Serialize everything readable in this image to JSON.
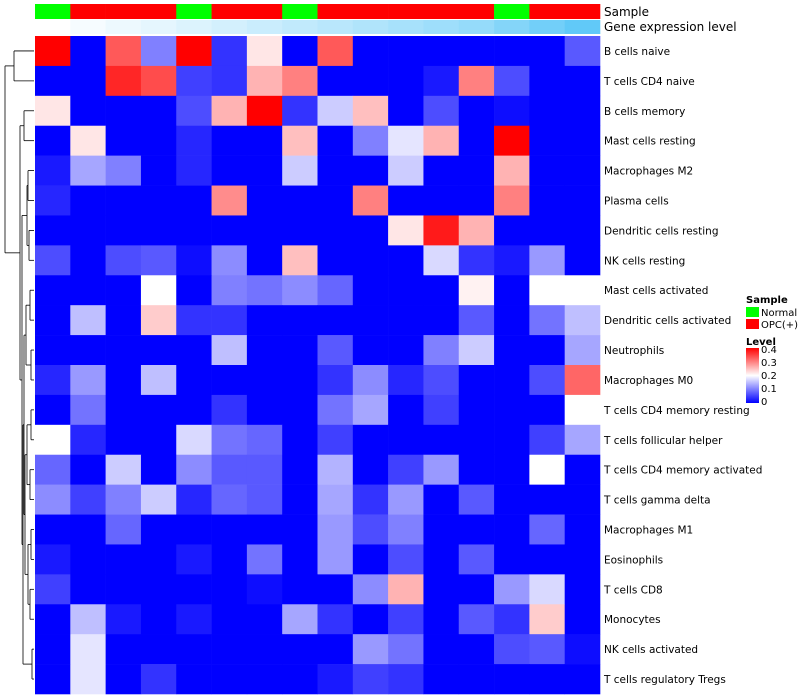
{
  "chart_data": {
    "type": "heatmap",
    "title": "",
    "annotation_tracks": [
      "Sample",
      "Gene expression level"
    ],
    "columns": 16,
    "sample_groups": [
      "Normal",
      "OPC(+)",
      "OPC(+)",
      "OPC(+)",
      "Normal",
      "OPC(+)",
      "OPC(+)",
      "Normal",
      "OPC(+)",
      "OPC(+)",
      "OPC(+)",
      "OPC(+)",
      "OPC(+)",
      "Normal",
      "OPC(+)",
      "OPC(+)"
    ],
    "expression_level": [
      0.0,
      0.05,
      0.1,
      0.15,
      0.2,
      0.25,
      0.3,
      0.35,
      0.4,
      0.45,
      0.5,
      0.55,
      0.6,
      0.7,
      0.8,
      0.9
    ],
    "rows": [
      "B cells naive",
      "T cells CD4 naive",
      "B cells memory",
      "Mast cells resting",
      "Macrophages M2",
      "Plasma cells",
      "Dendritic cells resting",
      "NK cells resting",
      "Mast cells activated",
      "Dendritic cells activated",
      "Neutrophils",
      "Macrophages M0",
      "T cells CD4 memory resting",
      "T cells follicular helper",
      "T cells CD4 memory activated",
      "T cells gamma delta",
      "Macrophages M1",
      "Eosinophils",
      "T cells CD8",
      "Monocytes",
      "NK cells activated",
      "T cells regulatory  Tregs"
    ],
    "values": [
      [
        0.4,
        0.0,
        0.33,
        0.1,
        0.4,
        0.04,
        0.22,
        0.0,
        0.33,
        0.0,
        0.0,
        0.0,
        0.0,
        0.0,
        0.0,
        0.07
      ],
      [
        0.0,
        0.0,
        0.37,
        0.34,
        0.05,
        0.04,
        0.26,
        0.3,
        0.0,
        0.0,
        0.0,
        0.02,
        0.3,
        0.06,
        0.0,
        0.0
      ],
      [
        0.22,
        0.0,
        0.0,
        0.0,
        0.06,
        0.26,
        0.4,
        0.04,
        0.16,
        0.25,
        0.0,
        0.06,
        0.0,
        0.01,
        0.0,
        0.0
      ],
      [
        0.0,
        0.22,
        0.0,
        0.0,
        0.03,
        0.0,
        0.0,
        0.25,
        0.0,
        0.1,
        0.18,
        0.26,
        0.0,
        0.4,
        0.0,
        0.0
      ],
      [
        0.02,
        0.13,
        0.1,
        0.0,
        0.03,
        0.0,
        0.0,
        0.16,
        0.0,
        0.0,
        0.16,
        0.0,
        0.0,
        0.26,
        0.0,
        0.0
      ],
      [
        0.03,
        0.0,
        0.0,
        0.0,
        0.0,
        0.29,
        0.0,
        0.0,
        0.0,
        0.3,
        0.0,
        0.0,
        0.0,
        0.3,
        0.0,
        0.0
      ],
      [
        0.0,
        0.0,
        0.0,
        0.0,
        0.0,
        0.0,
        0.0,
        0.0,
        0.0,
        0.0,
        0.22,
        0.38,
        0.26,
        0.0,
        0.0,
        0.0
      ],
      [
        0.06,
        0.0,
        0.06,
        0.07,
        0.01,
        0.11,
        0.0,
        0.25,
        0.0,
        0.0,
        0.0,
        0.17,
        0.04,
        0.02,
        0.12,
        0.0
      ],
      [
        0.0,
        0.0,
        0.0,
        0.2,
        0.0,
        0.1,
        0.09,
        0.11,
        0.08,
        0.0,
        0.0,
        0.0,
        0.21,
        0.0,
        0.2,
        0.2
      ],
      [
        0.0,
        0.15,
        0.0,
        0.24,
        0.04,
        0.04,
        0.0,
        0.0,
        0.0,
        0.0,
        0.0,
        0.0,
        0.07,
        0.0,
        0.09,
        0.15
      ],
      [
        0.0,
        0.0,
        0.0,
        0.0,
        0.0,
        0.15,
        0.0,
        0.0,
        0.07,
        0.0,
        0.0,
        0.1,
        0.16,
        0.0,
        0.0,
        0.13
      ],
      [
        0.03,
        0.12,
        0.0,
        0.15,
        0.0,
        0.0,
        0.0,
        0.0,
        0.04,
        0.11,
        0.03,
        0.06,
        0.0,
        0.0,
        0.06,
        0.32
      ],
      [
        0.0,
        0.09,
        0.0,
        0.0,
        0.0,
        0.04,
        0.0,
        0.0,
        0.09,
        0.13,
        0.0,
        0.05,
        0.0,
        0.0,
        0.0,
        0.2
      ],
      [
        0.2,
        0.03,
        0.0,
        0.0,
        0.17,
        0.09,
        0.08,
        0.0,
        0.05,
        0.0,
        0.0,
        0.0,
        0.0,
        0.0,
        0.05,
        0.13
      ],
      [
        0.08,
        0.0,
        0.16,
        0.0,
        0.11,
        0.07,
        0.07,
        0.0,
        0.14,
        0.0,
        0.05,
        0.12,
        0.0,
        0.0,
        0.2,
        0.0
      ],
      [
        0.11,
        0.05,
        0.1,
        0.16,
        0.03,
        0.08,
        0.07,
        0.0,
        0.13,
        0.04,
        0.12,
        0.0,
        0.07,
        0.0,
        0.0,
        0.0
      ],
      [
        0.0,
        0.0,
        0.08,
        0.0,
        0.0,
        0.0,
        0.0,
        0.0,
        0.12,
        0.06,
        0.1,
        0.0,
        0.0,
        0.0,
        0.08,
        0.0
      ],
      [
        0.02,
        0.0,
        0.0,
        0.0,
        0.02,
        0.0,
        0.09,
        0.0,
        0.12,
        0.0,
        0.06,
        0.0,
        0.07,
        0.0,
        0.0,
        0.0
      ],
      [
        0.05,
        0.0,
        0.0,
        0.0,
        0.0,
        0.0,
        0.01,
        0.0,
        0.0,
        0.11,
        0.26,
        0.0,
        0.0,
        0.12,
        0.17,
        0.0
      ],
      [
        0.0,
        0.15,
        0.02,
        0.0,
        0.02,
        0.0,
        0.0,
        0.13,
        0.04,
        0.0,
        0.05,
        0.0,
        0.07,
        0.04,
        0.24,
        0.0
      ],
      [
        0.0,
        0.18,
        0.0,
        0.0,
        0.0,
        0.0,
        0.0,
        0.0,
        0.0,
        0.12,
        0.09,
        0.0,
        0.0,
        0.06,
        0.07,
        0.01
      ],
      [
        0.0,
        0.18,
        0.0,
        0.04,
        0.0,
        0.0,
        0.0,
        0.0,
        0.02,
        0.05,
        0.04,
        0.0,
        0.0,
        0.0,
        0.0,
        0.0
      ]
    ],
    "color_scale": {
      "min": 0,
      "max": 0.4,
      "low": "#0000ff",
      "mid": "#ffffff",
      "high": "#ff0000",
      "mid_value": 0.2
    },
    "sample_colors": {
      "Normal": "#00ff00",
      "OPC(+)": "#ff0000"
    },
    "level_gradient": {
      "low": "#ffffff",
      "high": "#4fc3f7"
    },
    "dendrogram": "row"
  },
  "labels": {
    "sample_track": "Sample",
    "expression_track": "Gene expression level"
  },
  "legend": {
    "sample_title": "Sample",
    "sample_entries": [
      {
        "label": "Normal",
        "color": "#00ff00"
      },
      {
        "label": "OPC(+)",
        "color": "#ff0000"
      }
    ],
    "level_title": "Level",
    "level_ticks": [
      "0.4",
      "0.3",
      "0.2",
      "0.1",
      "0"
    ]
  }
}
